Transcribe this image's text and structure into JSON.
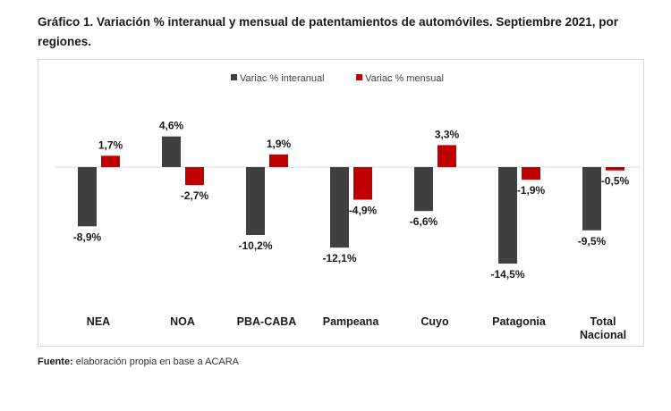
{
  "title": "Gráfico 1. Variación % interanual y mensual de patentamientos de automóviles. Septiembre 2021, por regiones.",
  "source": {
    "label": "Fuente:",
    "text": " elaboración propia en base a ACARA"
  },
  "chart_data": {
    "type": "bar",
    "title": "",
    "xlabel": "",
    "ylabel": "",
    "categories": [
      "NEA",
      "NOA",
      "PBA-CABA",
      "Pampeana",
      "Cuyo",
      "Patagonia",
      "Total Nacional"
    ],
    "series": [
      {
        "name": "Variac % interanual",
        "color": "#404040",
        "values": [
          -8.9,
          4.6,
          -10.2,
          -12.1,
          -6.6,
          -14.5,
          -9.5
        ],
        "labels": [
          "-8,9%",
          "4,6%",
          "-10,2%",
          "-12,1%",
          "-6,6%",
          "-14,5%",
          "-9,5%"
        ]
      },
      {
        "name": "Variac % mensual",
        "color": "#c00000",
        "values": [
          1.7,
          -2.7,
          1.9,
          -4.9,
          3.3,
          -1.9,
          -0.5
        ],
        "labels": [
          "1,7%",
          "-2,7%",
          "1,9%",
          "-4,9%",
          "3,3%",
          "-1,9%",
          "-0,5%"
        ]
      }
    ],
    "legend": "top",
    "grid": false,
    "ylim": [
      -16,
      8
    ]
  }
}
